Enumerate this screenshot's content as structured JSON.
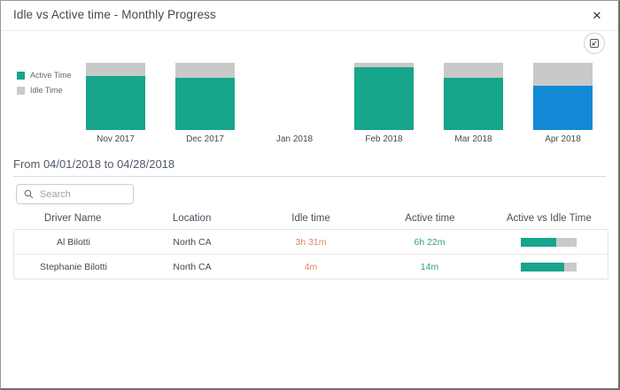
{
  "dialog": {
    "title": "Idle vs Active time - Monthly Progress",
    "close_glyph": "✕"
  },
  "icons": {
    "close": "close-icon",
    "export": "export-chart-icon",
    "search": "search-icon"
  },
  "colors": {
    "active": "#17a58b",
    "active_selected": "#1289d5",
    "idle": "#c9c9c9",
    "idle_value_text": "#e2825c",
    "active_value_text": "#279e8c"
  },
  "chart_data": {
    "type": "bar",
    "subtype": "stacked-percent",
    "title": "Idle vs Active time - Monthly Progress",
    "categories": [
      "Nov 2017",
      "Dec 2017",
      "Jan 2018",
      "Feb 2018",
      "Mar 2018",
      "Apr 2018"
    ],
    "series": [
      {
        "name": "Active Time",
        "values": [
          80,
          78,
          null,
          93,
          78,
          66
        ]
      },
      {
        "name": "Idle Time",
        "values": [
          20,
          22,
          null,
          7,
          22,
          34
        ]
      }
    ],
    "ylim": [
      0,
      100
    ],
    "unit": "percent",
    "grid": false,
    "legend_position": "left",
    "selected_category": "Apr 2018",
    "legend": [
      {
        "label": "Active Time",
        "color": "#17a58b"
      },
      {
        "label": "Idle Time",
        "color": "#c9c9c9"
      }
    ]
  },
  "period_label": "From 04/01/2018 to 04/28/2018",
  "search": {
    "placeholder": "Search"
  },
  "table": {
    "columns": [
      "Driver Name",
      "Location",
      "Idle time",
      "Active time",
      "Active vs Idle Time"
    ],
    "rows": [
      {
        "driver": "Al Bilotti",
        "location": "North CA",
        "idle": "3h 31m",
        "active": "6h 22m",
        "active_pct": 64
      },
      {
        "driver": "Stephanie Bilotti",
        "location": "North CA",
        "idle": "4m",
        "active": "14m",
        "active_pct": 78
      }
    ]
  }
}
